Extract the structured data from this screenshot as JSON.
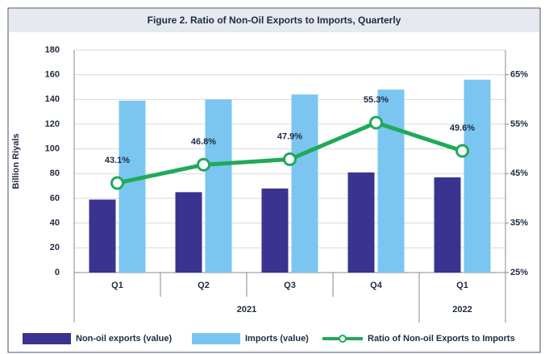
{
  "chart_data": {
    "type": "bar_line",
    "title": "Figure 2. Ratio of Non-Oil Exports to Imports, Quarterly",
    "y_label": "Billion Riyals",
    "categories": [
      "Q1",
      "Q2",
      "Q3",
      "Q4",
      "Q1"
    ],
    "x_groups": [
      {
        "label": "2021",
        "span": 4
      },
      {
        "label": "2022",
        "span": 1
      }
    ],
    "ylim": [
      0,
      180
    ],
    "yticks": [
      0,
      20,
      40,
      60,
      80,
      100,
      120,
      140,
      160,
      180
    ],
    "y2lim": [
      25,
      70
    ],
    "y2ticks": [
      {
        "value": 25,
        "label": "25%"
      },
      {
        "value": 35,
        "label": "35%"
      },
      {
        "value": 45,
        "label": "45%"
      },
      {
        "value": 55,
        "label": "55%"
      },
      {
        "value": 65,
        "label": "65%"
      }
    ],
    "grid": true,
    "legend": "bottom",
    "series": [
      {
        "name": "Non-oil exports (value)",
        "type": "bar",
        "color": "#3a3390",
        "values": [
          59,
          65,
          68,
          81,
          77
        ]
      },
      {
        "name": "Imports (value)",
        "type": "bar",
        "color": "#7ac6f0",
        "values": [
          139,
          140,
          144,
          148,
          156
        ]
      },
      {
        "name": "Ratio of Non-oil Exports to Imports",
        "type": "line",
        "axis": "y2",
        "color": "#20a95a",
        "values": [
          43.1,
          46.8,
          47.9,
          55.3,
          49.6
        ],
        "value_labels": [
          "43.1%",
          "46.8%",
          "47.9%",
          "55.3%",
          "49.6%"
        ]
      }
    ]
  }
}
